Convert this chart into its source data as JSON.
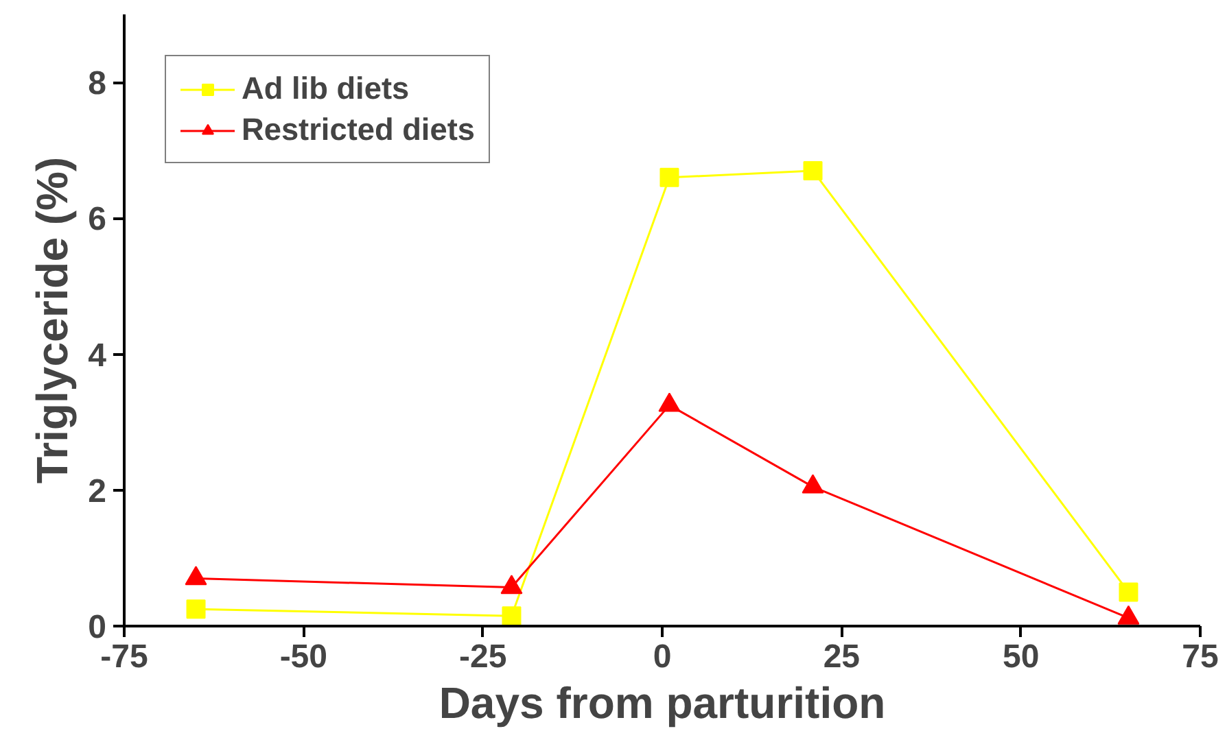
{
  "chart_data": {
    "type": "line",
    "xlabel": "Days from parturition",
    "ylabel": "Triglyceride (%)",
    "xlim": [
      -75,
      75
    ],
    "xticks": [
      -75,
      -50,
      -25,
      0,
      25,
      50,
      75
    ],
    "ylim": [
      0,
      9
    ],
    "yticks": [
      0,
      2,
      4,
      6,
      8
    ],
    "grid": false,
    "legend": "top left",
    "series": [
      {
        "name": "Ad lib diets",
        "color": "#ffff00",
        "marker": "square",
        "x": [
          -65,
          -21,
          1,
          21,
          65
        ],
        "values": [
          0.25,
          0.15,
          6.6,
          6.7,
          0.5
        ]
      },
      {
        "name": "Restricted diets",
        "color": "#ff0000",
        "marker": "triangle",
        "x": [
          -65,
          -21,
          1,
          21,
          65
        ],
        "values": [
          0.7,
          0.57,
          3.25,
          2.05,
          0.12
        ]
      }
    ]
  }
}
